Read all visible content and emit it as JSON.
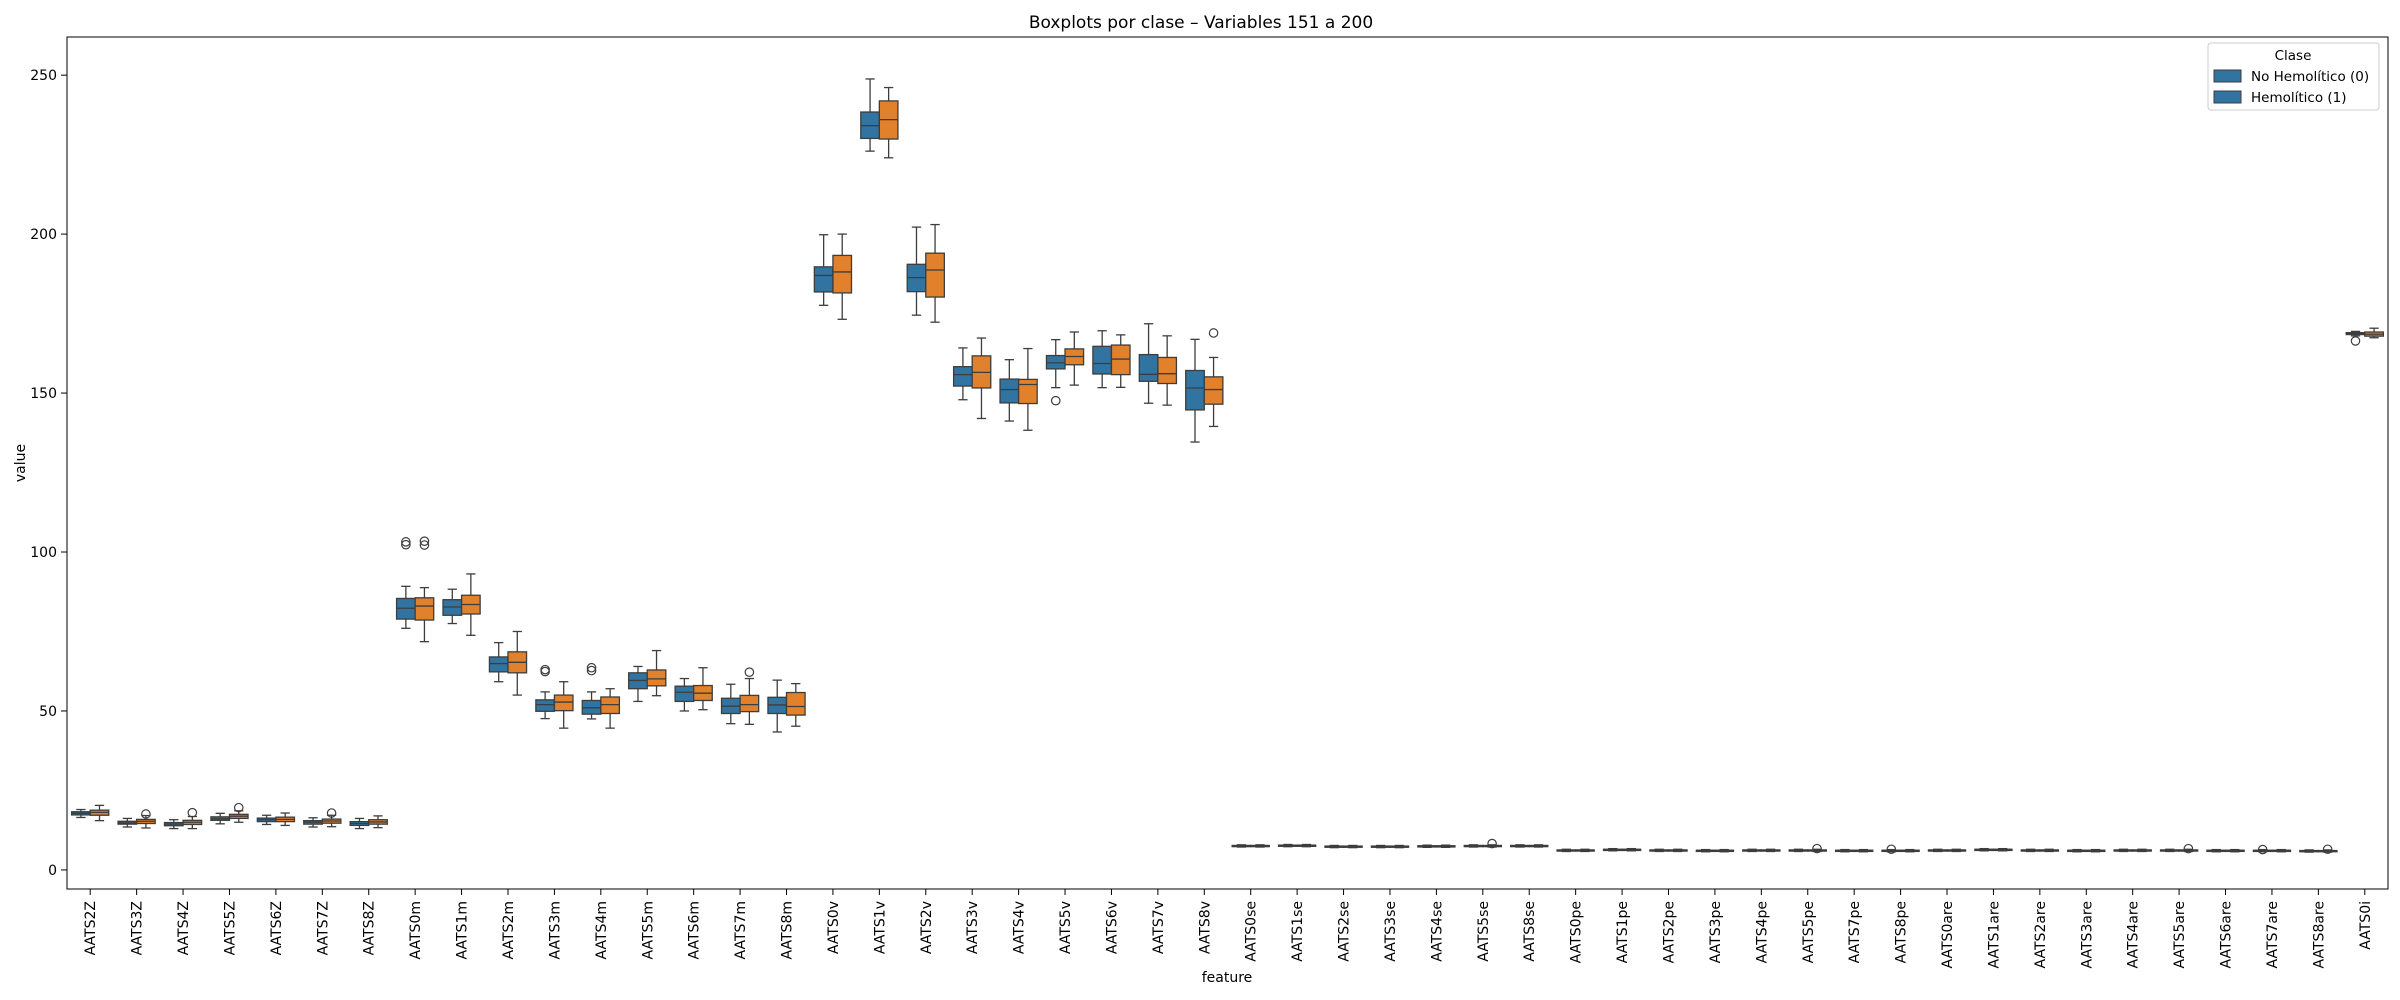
{
  "chart_data": {
    "type": "boxplot",
    "title": "Boxplots por clase – Variables 151 a 200",
    "xlabel": "feature",
    "ylabel": "value",
    "ylim": [
      -6,
      262
    ],
    "yticks": [
      0,
      50,
      100,
      150,
      200,
      250
    ],
    "grid": false,
    "legend": {
      "title": "Clase",
      "placement": "top-right",
      "entries": [
        "No Hemolítico (0)",
        "Hemolítico (1)"
      ]
    },
    "colors": {
      "class0": "#3274a1",
      "class1": "#e1812c",
      "edge": "#3d3d3d"
    },
    "features": [
      {
        "name": "AATS2Z",
        "c0": [
          16.5,
          17.3,
          17.8,
          18.3,
          19.0,
          []
        ],
        "c1": [
          15.5,
          17.2,
          18.1,
          18.8,
          20.3,
          []
        ]
      },
      {
        "name": "AATS3Z",
        "c0": [
          13.5,
          14.4,
          14.8,
          15.3,
          16.2,
          []
        ],
        "c1": [
          13.2,
          14.6,
          15.3,
          15.9,
          17.1,
          [
            17.6
          ]
        ]
      },
      {
        "name": "AATS4Z",
        "c0": [
          13.0,
          13.9,
          14.4,
          14.9,
          15.8,
          []
        ],
        "c1": [
          13.0,
          14.3,
          15.0,
          15.6,
          16.8,
          [
            18.0
          ]
        ]
      },
      {
        "name": "AATS5Z",
        "c0": [
          14.5,
          15.6,
          16.1,
          16.7,
          17.8,
          []
        ],
        "c1": [
          15.0,
          16.2,
          16.9,
          17.5,
          18.6,
          [
            19.6
          ]
        ]
      },
      {
        "name": "AATS6Z",
        "c0": [
          14.3,
          15.2,
          15.8,
          16.3,
          17.2,
          []
        ],
        "c1": [
          14.0,
          15.2,
          15.9,
          16.6,
          17.9,
          []
        ]
      },
      {
        "name": "AATS7Z",
        "c0": [
          13.5,
          14.4,
          15.0,
          15.5,
          16.4,
          []
        ],
        "c1": [
          13.6,
          14.7,
          15.4,
          16.0,
          17.2,
          [
            17.9
          ]
        ]
      },
      {
        "name": "AATS8Z",
        "c0": [
          13.0,
          14.0,
          14.6,
          15.2,
          16.2,
          []
        ],
        "c1": [
          13.3,
          14.4,
          15.1,
          15.8,
          17.0,
          []
        ]
      },
      {
        "name": "AATS0m",
        "c0": [
          76.0,
          78.9,
          82.3,
          85.4,
          89.2,
          [
            102.3,
            103.2
          ]
        ],
        "c1": [
          71.8,
          78.6,
          83.0,
          85.6,
          88.8,
          [
            102.2,
            103.4
          ]
        ]
      },
      {
        "name": "AATS1m",
        "c0": [
          77.5,
          80.1,
          82.7,
          85.0,
          88.3,
          []
        ],
        "c1": [
          73.8,
          80.5,
          83.5,
          86.4,
          93.1,
          []
        ]
      },
      {
        "name": "AATS2m",
        "c0": [
          59.2,
          62.3,
          64.9,
          67.0,
          71.5,
          []
        ],
        "c1": [
          55.0,
          62.0,
          65.3,
          68.6,
          75.0,
          []
        ]
      },
      {
        "name": "AATS3m",
        "c0": [
          47.6,
          49.9,
          52.0,
          53.5,
          56.0,
          [
            62.4,
            63.0
          ]
        ],
        "c1": [
          44.6,
          50.1,
          52.8,
          55.0,
          59.2,
          []
        ]
      },
      {
        "name": "AATS4m",
        "c0": [
          47.5,
          49.0,
          51.0,
          53.3,
          56.0,
          [
            62.7,
            63.6
          ]
        ],
        "c1": [
          44.6,
          49.2,
          52.0,
          54.4,
          57.0,
          []
        ]
      },
      {
        "name": "AATS5m",
        "c0": [
          53.0,
          57.0,
          59.6,
          62.0,
          64.0,
          []
        ],
        "c1": [
          54.8,
          57.9,
          60.1,
          62.9,
          69.0,
          []
        ]
      },
      {
        "name": "AATS6m",
        "c0": [
          50.0,
          53.0,
          55.9,
          57.8,
          60.2,
          []
        ],
        "c1": [
          50.4,
          53.3,
          55.6,
          58.0,
          63.6,
          []
        ]
      },
      {
        "name": "AATS7m",
        "c0": [
          46.0,
          49.2,
          51.5,
          54.0,
          58.4,
          []
        ],
        "c1": [
          45.8,
          49.8,
          52.0,
          54.9,
          60.2,
          [
            62.2
          ]
        ]
      },
      {
        "name": "AATS8m",
        "c0": [
          43.4,
          49.2,
          51.9,
          54.3,
          59.7,
          []
        ],
        "c1": [
          45.2,
          48.7,
          51.4,
          55.8,
          58.6,
          []
        ]
      },
      {
        "name": "AATS0v",
        "c0": [
          177.6,
          181.8,
          187.0,
          189.7,
          199.8,
          []
        ],
        "c1": [
          173.2,
          181.5,
          188.1,
          193.3,
          200.0,
          []
        ]
      },
      {
        "name": "AATS1v",
        "c0": [
          226.1,
          230.1,
          234.1,
          238.4,
          248.8,
          []
        ],
        "c1": [
          224.0,
          229.9,
          236.0,
          241.9,
          246.1,
          []
        ]
      },
      {
        "name": "AATS2v",
        "c0": [
          174.5,
          181.9,
          186.3,
          190.5,
          202.2,
          []
        ],
        "c1": [
          172.3,
          180.2,
          188.7,
          194.0,
          203.0,
          []
        ]
      },
      {
        "name": "AATS3v",
        "c0": [
          147.9,
          152.2,
          155.8,
          158.3,
          164.2,
          []
        ],
        "c1": [
          142.0,
          151.6,
          156.5,
          161.7,
          167.3,
          []
        ]
      },
      {
        "name": "AATS4v",
        "c0": [
          141.2,
          146.9,
          151.1,
          154.4,
          160.5,
          []
        ],
        "c1": [
          138.3,
          146.7,
          152.7,
          154.3,
          164.0,
          []
        ]
      },
      {
        "name": "AATS5v",
        "c0": [
          151.7,
          157.6,
          159.5,
          161.8,
          166.8,
          [
            147.6
          ]
        ],
        "c1": [
          152.5,
          158.9,
          161.5,
          163.9,
          169.2,
          []
        ]
      },
      {
        "name": "AATS6v",
        "c0": [
          151.7,
          156.0,
          159.3,
          164.7,
          169.6,
          []
        ],
        "c1": [
          151.8,
          155.8,
          160.7,
          165.1,
          168.3,
          []
        ]
      },
      {
        "name": "AATS7v",
        "c0": [
          146.8,
          153.7,
          155.9,
          162.1,
          171.8,
          []
        ],
        "c1": [
          146.2,
          153.0,
          156.1,
          161.2,
          168.0,
          []
        ]
      },
      {
        "name": "AATS8v",
        "c0": [
          134.6,
          144.7,
          151.6,
          157.1,
          166.9,
          []
        ],
        "c1": [
          139.5,
          146.5,
          151.1,
          155.1,
          161.2,
          [
            168.9
          ]
        ]
      },
      {
        "name": "AATS0se",
        "c0": [
          7.2,
          7.4,
          7.6,
          7.7,
          7.9,
          []
        ],
        "c1": [
          7.2,
          7.4,
          7.6,
          7.7,
          7.9,
          []
        ]
      },
      {
        "name": "AATS1se",
        "c0": [
          7.3,
          7.5,
          7.7,
          7.8,
          8.0,
          []
        ],
        "c1": [
          7.3,
          7.5,
          7.7,
          7.8,
          8.0,
          []
        ]
      },
      {
        "name": "AATS2se",
        "c0": [
          7.0,
          7.2,
          7.4,
          7.5,
          7.7,
          []
        ],
        "c1": [
          7.0,
          7.2,
          7.4,
          7.5,
          7.7,
          []
        ]
      },
      {
        "name": "AATS3se",
        "c0": [
          7.0,
          7.2,
          7.4,
          7.5,
          7.7,
          []
        ],
        "c1": [
          7.0,
          7.2,
          7.4,
          7.5,
          7.7,
          []
        ]
      },
      {
        "name": "AATS4se",
        "c0": [
          7.1,
          7.3,
          7.5,
          7.6,
          7.8,
          []
        ],
        "c1": [
          7.1,
          7.3,
          7.5,
          7.6,
          7.8,
          []
        ]
      },
      {
        "name": "AATS5se",
        "c0": [
          7.2,
          7.4,
          7.6,
          7.7,
          7.9,
          []
        ],
        "c1": [
          7.2,
          7.4,
          7.6,
          7.7,
          7.9,
          [
            8.3
          ]
        ]
      },
      {
        "name": "AATS8se",
        "c0": [
          7.2,
          7.4,
          7.6,
          7.7,
          7.9,
          []
        ],
        "c1": [
          7.2,
          7.4,
          7.6,
          7.7,
          7.9,
          []
        ]
      },
      {
        "name": "AATS0pe",
        "c0": [
          5.8,
          6.0,
          6.2,
          6.3,
          6.5,
          []
        ],
        "c1": [
          5.8,
          6.0,
          6.2,
          6.3,
          6.5,
          []
        ]
      },
      {
        "name": "AATS1pe",
        "c0": [
          6.0,
          6.2,
          6.4,
          6.5,
          6.7,
          []
        ],
        "c1": [
          6.0,
          6.2,
          6.4,
          6.5,
          6.7,
          []
        ]
      },
      {
        "name": "AATS2pe",
        "c0": [
          5.8,
          6.0,
          6.2,
          6.3,
          6.5,
          []
        ],
        "c1": [
          5.8,
          6.0,
          6.2,
          6.3,
          6.5,
          []
        ]
      },
      {
        "name": "AATS3pe",
        "c0": [
          5.7,
          5.9,
          6.1,
          6.2,
          6.4,
          []
        ],
        "c1": [
          5.7,
          5.9,
          6.1,
          6.2,
          6.4,
          []
        ]
      },
      {
        "name": "AATS4pe",
        "c0": [
          5.8,
          6.0,
          6.2,
          6.3,
          6.5,
          []
        ],
        "c1": [
          5.8,
          6.0,
          6.2,
          6.3,
          6.5,
          []
        ]
      },
      {
        "name": "AATS5pe",
        "c0": [
          5.8,
          6.0,
          6.2,
          6.3,
          6.5,
          []
        ],
        "c1": [
          5.8,
          6.0,
          6.2,
          6.3,
          6.5,
          [
            6.7
          ]
        ]
      },
      {
        "name": "AATS7pe",
        "c0": [
          5.7,
          5.9,
          6.1,
          6.2,
          6.4,
          []
        ],
        "c1": [
          5.7,
          5.9,
          6.1,
          6.2,
          6.4,
          []
        ]
      },
      {
        "name": "AATS8pe",
        "c0": [
          5.7,
          5.9,
          6.1,
          6.2,
          6.4,
          [
            6.5
          ]
        ],
        "c1": [
          5.7,
          5.9,
          6.1,
          6.2,
          6.4,
          []
        ]
      },
      {
        "name": "AATS0are",
        "c0": [
          5.8,
          6.0,
          6.2,
          6.3,
          6.5,
          []
        ],
        "c1": [
          5.8,
          6.0,
          6.2,
          6.3,
          6.5,
          []
        ]
      },
      {
        "name": "AATS1are",
        "c0": [
          6.0,
          6.2,
          6.4,
          6.5,
          6.7,
          []
        ],
        "c1": [
          6.0,
          6.2,
          6.4,
          6.5,
          6.7,
          []
        ]
      },
      {
        "name": "AATS2are",
        "c0": [
          5.8,
          6.0,
          6.2,
          6.3,
          6.5,
          []
        ],
        "c1": [
          5.8,
          6.0,
          6.2,
          6.3,
          6.5,
          []
        ]
      },
      {
        "name": "AATS3are",
        "c0": [
          5.7,
          5.9,
          6.1,
          6.2,
          6.4,
          []
        ],
        "c1": [
          5.7,
          5.9,
          6.1,
          6.2,
          6.4,
          []
        ]
      },
      {
        "name": "AATS4are",
        "c0": [
          5.8,
          6.0,
          6.2,
          6.3,
          6.5,
          []
        ],
        "c1": [
          5.8,
          6.0,
          6.2,
          6.3,
          6.5,
          []
        ]
      },
      {
        "name": "AATS5are",
        "c0": [
          5.8,
          6.0,
          6.2,
          6.3,
          6.5,
          []
        ],
        "c1": [
          5.8,
          6.0,
          6.2,
          6.3,
          6.5,
          [
            6.7
          ]
        ]
      },
      {
        "name": "AATS6are",
        "c0": [
          5.7,
          5.9,
          6.1,
          6.2,
          6.4,
          []
        ],
        "c1": [
          5.7,
          5.9,
          6.1,
          6.2,
          6.4,
          []
        ]
      },
      {
        "name": "AATS7are",
        "c0": [
          5.7,
          5.9,
          6.1,
          6.2,
          6.4,
          [
            6.4
          ]
        ],
        "c1": [
          5.7,
          5.9,
          6.1,
          6.2,
          6.4,
          []
        ]
      },
      {
        "name": "AATS8are",
        "c0": [
          5.6,
          5.8,
          6.0,
          6.1,
          6.3,
          []
        ],
        "c1": [
          5.6,
          5.8,
          6.0,
          6.1,
          6.3,
          [
            6.5
          ]
        ]
      },
      {
        "name": "AATS0i",
        "c0": [
          168.0,
          168.4,
          168.7,
          169.0,
          169.4,
          [
            166.4
          ]
        ],
        "c1": [
          167.4,
          167.9,
          168.5,
          169.2,
          170.4,
          []
        ]
      }
    ]
  }
}
